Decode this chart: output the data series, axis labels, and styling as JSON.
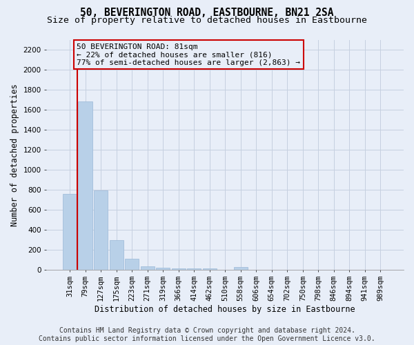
{
  "title": "50, BEVERINGTON ROAD, EASTBOURNE, BN21 2SA",
  "subtitle": "Size of property relative to detached houses in Eastbourne",
  "xlabel": "Distribution of detached houses by size in Eastbourne",
  "ylabel": "Number of detached properties",
  "categories": [
    "31sqm",
    "79sqm",
    "127sqm",
    "175sqm",
    "223sqm",
    "271sqm",
    "319sqm",
    "366sqm",
    "414sqm",
    "462sqm",
    "510sqm",
    "558sqm",
    "606sqm",
    "654sqm",
    "702sqm",
    "750sqm",
    "798sqm",
    "846sqm",
    "894sqm",
    "941sqm",
    "989sqm"
  ],
  "values": [
    760,
    1680,
    795,
    295,
    115,
    40,
    22,
    18,
    17,
    16,
    0,
    30,
    0,
    0,
    0,
    0,
    0,
    0,
    0,
    0,
    0
  ],
  "bar_color": "#b8d0e8",
  "bar_edge_color": "#9ab8d8",
  "grid_color": "#c5d0e0",
  "background_color": "#e8eef8",
  "property_line_x": 0.5,
  "property_line_color": "#cc0000",
  "annotation_line1": "50 BEVERINGTON ROAD: 81sqm",
  "annotation_line2": "← 22% of detached houses are smaller (816)",
  "annotation_line3": "77% of semi-detached houses are larger (2,863) →",
  "annotation_box_edgecolor": "#cc0000",
  "ylim": [
    0,
    2300
  ],
  "yticks": [
    0,
    200,
    400,
    600,
    800,
    1000,
    1200,
    1400,
    1600,
    1800,
    2000,
    2200
  ],
  "footer_line1": "Contains HM Land Registry data © Crown copyright and database right 2024.",
  "footer_line2": "Contains public sector information licensed under the Open Government Licence v3.0.",
  "title_fontsize": 10.5,
  "subtitle_fontsize": 9.5,
  "ylabel_fontsize": 8.5,
  "xlabel_fontsize": 8.5,
  "tick_fontsize": 7.5,
  "annotation_fontsize": 8,
  "footer_fontsize": 7
}
